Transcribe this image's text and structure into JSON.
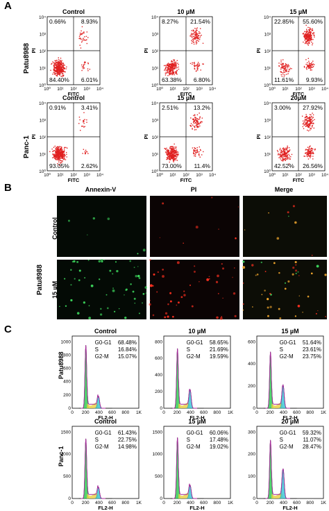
{
  "panels": {
    "A": {
      "letter": "A",
      "x_axis_label": "FITC",
      "y_axis_label": "PI",
      "x_ticks": [
        "10⁰",
        "10¹",
        "10²",
        "10³",
        "10⁴"
      ],
      "y_ticks": [
        "10⁴",
        "10³",
        "10²",
        "10¹",
        "10⁰"
      ],
      "rows": [
        {
          "label": "Patu8988",
          "plots": [
            {
              "title": "Control",
              "q": [
                "0.66%",
                "8.93%",
                "84.40%",
                "6.01%"
              ],
              "density": {
                "ll": 0.86,
                "ur": 0.09,
                "lr": 0.05
              }
            },
            {
              "title": "10 µM",
              "q": [
                "8.27%",
                "21.54%",
                "63.38%",
                "6.80%"
              ],
              "density": {
                "ll": 0.6,
                "ur": 0.25,
                "lr": 0.1
              }
            },
            {
              "title": "15 µM",
              "q": [
                "22.85%",
                "55.60%",
                "11.61%",
                "9.93%"
              ],
              "density": {
                "ll": 0.2,
                "ur": 0.55,
                "lr": 0.15
              }
            }
          ]
        },
        {
          "label": "Panc-1",
          "plots": [
            {
              "title": "Control",
              "q": [
                "0.91%",
                "3.41%",
                "93.05%",
                "2.62%"
              ],
              "density": {
                "ll": 0.92,
                "ur": 0.05,
                "lr": 0.03
              }
            },
            {
              "title": "15 µM",
              "q": [
                "2.51%",
                "13.2%",
                "73.00%",
                "11.4%"
              ],
              "density": {
                "ll": 0.7,
                "ur": 0.2,
                "lr": 0.1
              }
            },
            {
              "title": "20µM",
              "q": [
                "3.00%",
                "27.92%",
                "42.52%",
                "26.56%"
              ],
              "density": {
                "ll": 0.4,
                "ur": 0.35,
                "lr": 0.25
              }
            }
          ]
        }
      ]
    },
    "B": {
      "letter": "B",
      "columns": [
        "Annexin-V",
        "PI",
        "Merge"
      ],
      "row_label": "Patu8988",
      "rows": [
        "Control",
        "15 µM"
      ]
    },
    "C": {
      "letter": "C",
      "x_axis_label": "FL2-H",
      "x_ticks": [
        "0",
        "200",
        "400",
        "600",
        "800",
        "1K"
      ],
      "phase_labels": [
        "G0-G1",
        "S",
        "G2-M"
      ],
      "rows": [
        {
          "label": "Patu8988",
          "plots": [
            {
              "title": "Control",
              "y_ticks": [
                "1000",
                "800",
                "600",
                "400",
                "200",
                "0"
              ],
              "vals": [
                "68.48%",
                "16.84%",
                "15.07%"
              ],
              "g1": 0.95,
              "g2": 0.18
            },
            {
              "title": "10 µM",
              "y_ticks": [
                "800",
                "600",
                "400",
                "200",
                "0"
              ],
              "vals": [
                "58.65%",
                "21.69%",
                "19.59%"
              ],
              "g1": 0.9,
              "g2": 0.28
            },
            {
              "title": "15 µM",
              "y_ticks": [
                "600",
                "400",
                "200",
                "0"
              ],
              "vals": [
                "51.64%",
                "23.61%",
                "23.75%"
              ],
              "g1": 0.85,
              "g2": 0.35
            }
          ]
        },
        {
          "label": "Panc-1",
          "plots": [
            {
              "title": "Control",
              "y_ticks": [
                "1500",
                "1000",
                "500",
                "0"
              ],
              "vals": [
                "61.43%",
                "22.75%",
                "14.98%"
              ],
              "g1": 0.9,
              "g2": 0.17
            },
            {
              "title": "15 µM",
              "y_ticks": [
                "1500",
                "1000",
                "500",
                "0"
              ],
              "vals": [
                "60.06%",
                "17.48%",
                "19.02%"
              ],
              "g1": 0.92,
              "g2": 0.2
            },
            {
              "title": "20 µM",
              "y_ticks": [
                "300",
                "200",
                "100",
                "0"
              ],
              "vals": [
                "59.32%",
                "11.07%",
                "28.47%"
              ],
              "g1": 0.88,
              "g2": 0.45
            }
          ]
        }
      ]
    }
  }
}
